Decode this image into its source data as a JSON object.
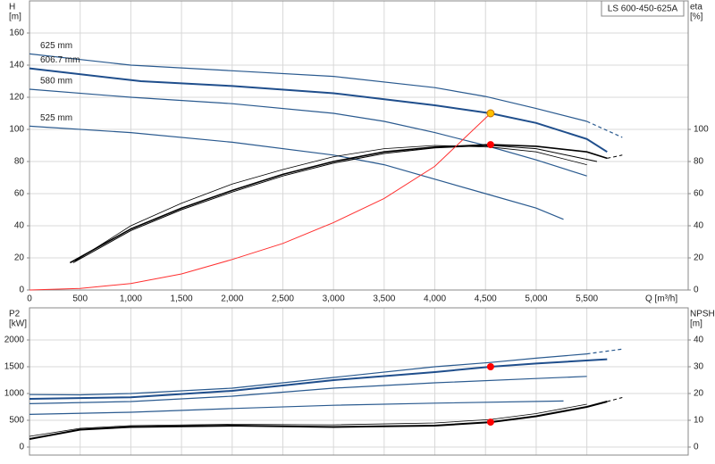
{
  "chart_data": [
    {
      "type": "line",
      "title": "LS 600-450-625A",
      "xlabel": "Q [m³/h]",
      "ylabel": "H",
      "yunit": "[m]",
      "y2label": "eta",
      "y2unit": "[%]",
      "xlim": [
        0,
        6500
      ],
      "ylim": [
        0,
        180
      ],
      "y2lim": [
        0,
        180
      ],
      "grid": true,
      "xticks": [
        0,
        500,
        {
          "value": 1000,
          "label": "1,000"
        },
        {
          "value": 1500,
          "label": "1,500"
        },
        {
          "value": 2000,
          "label": "2,000"
        },
        {
          "value": 2500,
          "label": "2,500"
        },
        {
          "value": 3000,
          "label": "3,000"
        },
        {
          "value": 3500,
          "label": "3,500"
        },
        {
          "value": 4000,
          "label": "4,000"
        },
        {
          "value": 4500,
          "label": "4,500"
        },
        {
          "value": 5000,
          "label": "5,000"
        },
        {
          "value": 5500,
          "label": "5,500"
        }
      ],
      "yticks": [
        0,
        20,
        40,
        60,
        80,
        100,
        120,
        140,
        160
      ],
      "y2ticks": [
        0,
        20,
        40,
        60,
        80,
        100
      ],
      "series": [
        {
          "name": "625 mm",
          "color": "#2a5a8f",
          "width": 1.2,
          "x": [
            0,
            1000,
            2000,
            3000,
            4000,
            4500,
            5000,
            5500
          ],
          "values": [
            147,
            140,
            136.5,
            133,
            126,
            120.5,
            113,
            105
          ]
        },
        {
          "color": "#2a5a8f",
          "width": 1.2,
          "dash": true,
          "x": [
            5500,
            5850
          ],
          "values": [
            105,
            95
          ]
        },
        {
          "name": "606.7 mm",
          "color": "#1f4e8c",
          "width": 2,
          "x": [
            0,
            1100,
            2000,
            3000,
            4000,
            4550,
            5000,
            5500,
            5700
          ],
          "values": [
            138,
            130,
            127,
            122.5,
            115,
            110,
            104,
            94,
            86
          ]
        },
        {
          "name": "580 mm",
          "color": "#2a5a8f",
          "width": 1.2,
          "x": [
            0,
            1000,
            2000,
            3000,
            3500,
            4000,
            4500,
            5000,
            5500
          ],
          "values": [
            125,
            120,
            116,
            110,
            105,
            98,
            90,
            81,
            71
          ]
        },
        {
          "name": "525 mm",
          "color": "#2a5a8f",
          "width": 1.2,
          "x": [
            0,
            1000,
            2000,
            3000,
            3500,
            4000,
            4500,
            5000,
            5270
          ],
          "values": [
            102,
            98,
            92,
            84,
            78,
            69,
            60,
            51,
            44
          ]
        },
        {
          "color": "#000000",
          "width": 1.6,
          "axis": "y2",
          "x": [
            400,
            1000,
            1500,
            2000,
            2500,
            3000,
            3500,
            4000,
            4550,
            5000,
            5500,
            5700
          ],
          "values": [
            17,
            38,
            51,
            62,
            72,
            80,
            86,
            89,
            90.5,
            89.5,
            86,
            82
          ]
        },
        {
          "color": "#000000",
          "width": 0.8,
          "axis": "y2",
          "x": [
            450,
            1000,
            1500,
            2000,
            2500,
            3000,
            3500,
            4000,
            4550,
            5000,
            5500
          ],
          "values": [
            18,
            40,
            54,
            66,
            75,
            83,
            88,
            90,
            89,
            86,
            78
          ]
        },
        {
          "color": "#000000",
          "width": 1,
          "axis": "y2",
          "x": [
            430,
            1000,
            1500,
            2000,
            2500,
            3000,
            3500,
            4000,
            4550,
            5000,
            5600
          ],
          "values": [
            17,
            37,
            50,
            61,
            71,
            79,
            85,
            88.5,
            90,
            88,
            80
          ]
        },
        {
          "color": "#000000",
          "width": 1,
          "dash": true,
          "axis": "y2",
          "x": [
            5700,
            5850
          ],
          "values": [
            82,
            84
          ]
        },
        {
          "color": "#ff3030",
          "width": 1,
          "x": [
            0,
            500,
            1000,
            1500,
            2000,
            2500,
            3000,
            3500,
            4000,
            4550
          ],
          "values": [
            0,
            1,
            4,
            10,
            19,
            29,
            42,
            57,
            77,
            110
          ]
        },
        {
          "color": "#ffc000",
          "marker": true,
          "x": [
            4550
          ],
          "values": [
            110
          ]
        },
        {
          "color": "#ff0000",
          "marker": true,
          "axis": "y2",
          "x": [
            4550
          ],
          "values": [
            90.5
          ]
        }
      ]
    },
    {
      "type": "line",
      "ylabel": "P2",
      "yunit": "[kW]",
      "y2label": "NPSH",
      "y2unit": "[m]",
      "xlim": [
        0,
        6500
      ],
      "ylim": [
        -150,
        2600
      ],
      "y2lim": [
        -3,
        52
      ],
      "grid": true,
      "yticks": [
        0,
        500,
        1000,
        1500,
        2000
      ],
      "y2ticks": [
        0,
        10,
        20,
        30,
        40
      ],
      "series": [
        {
          "color": "#2a5a8f",
          "width": 1.2,
          "x": [
            0,
            500,
            1000,
            2000,
            3000,
            4000,
            4550,
            5000,
            5500
          ],
          "values": [
            980,
            975,
            1000,
            1100,
            1300,
            1500,
            1580,
            1660,
            1740
          ]
        },
        {
          "color": "#2a5a8f",
          "width": 1.2,
          "dash": true,
          "x": [
            5500,
            5850
          ],
          "values": [
            1740,
            1830
          ]
        },
        {
          "color": "#1f4e8c",
          "width": 2,
          "x": [
            0,
            1000,
            2000,
            3000,
            4000,
            4550,
            5000,
            5700
          ],
          "values": [
            900,
            930,
            1050,
            1250,
            1400,
            1500,
            1560,
            1640
          ]
        },
        {
          "color": "#2a5a8f",
          "width": 1.2,
          "x": [
            0,
            1000,
            2000,
            3000,
            4000,
            5000,
            5500
          ],
          "values": [
            810,
            850,
            950,
            1100,
            1200,
            1280,
            1320
          ]
        },
        {
          "color": "#2a5a8f",
          "width": 1.2,
          "x": [
            0,
            1000,
            2000,
            3000,
            4000,
            5270
          ],
          "values": [
            610,
            650,
            720,
            780,
            820,
            860
          ]
        },
        {
          "color": "#000000",
          "width": 2,
          "axis": "y2",
          "x": [
            0,
            500,
            1000,
            2000,
            3000,
            4000,
            4550,
            5000,
            5500,
            5700
          ],
          "values": [
            3,
            6.5,
            7.5,
            8,
            7.5,
            8,
            9.3,
            11.5,
            15,
            17
          ]
        },
        {
          "color": "#000000",
          "width": 0.8,
          "axis": "y2",
          "x": [
            0,
            500,
            1000,
            2000,
            3000,
            4000,
            4550,
            5000,
            5500
          ],
          "values": [
            4,
            7,
            8,
            8.5,
            8.3,
            9,
            10.3,
            12.5,
            16
          ]
        },
        {
          "color": "#000000",
          "width": 1,
          "dash": true,
          "axis": "y2",
          "x": [
            5700,
            5850
          ],
          "values": [
            17,
            18.5
          ]
        },
        {
          "color": "#ff0000",
          "marker": true,
          "x": [
            4550
          ],
          "values": [
            1500
          ]
        },
        {
          "color": "#ff0000",
          "marker": true,
          "axis": "y2",
          "x": [
            4550
          ],
          "values": [
            9.3
          ]
        }
      ]
    }
  ]
}
